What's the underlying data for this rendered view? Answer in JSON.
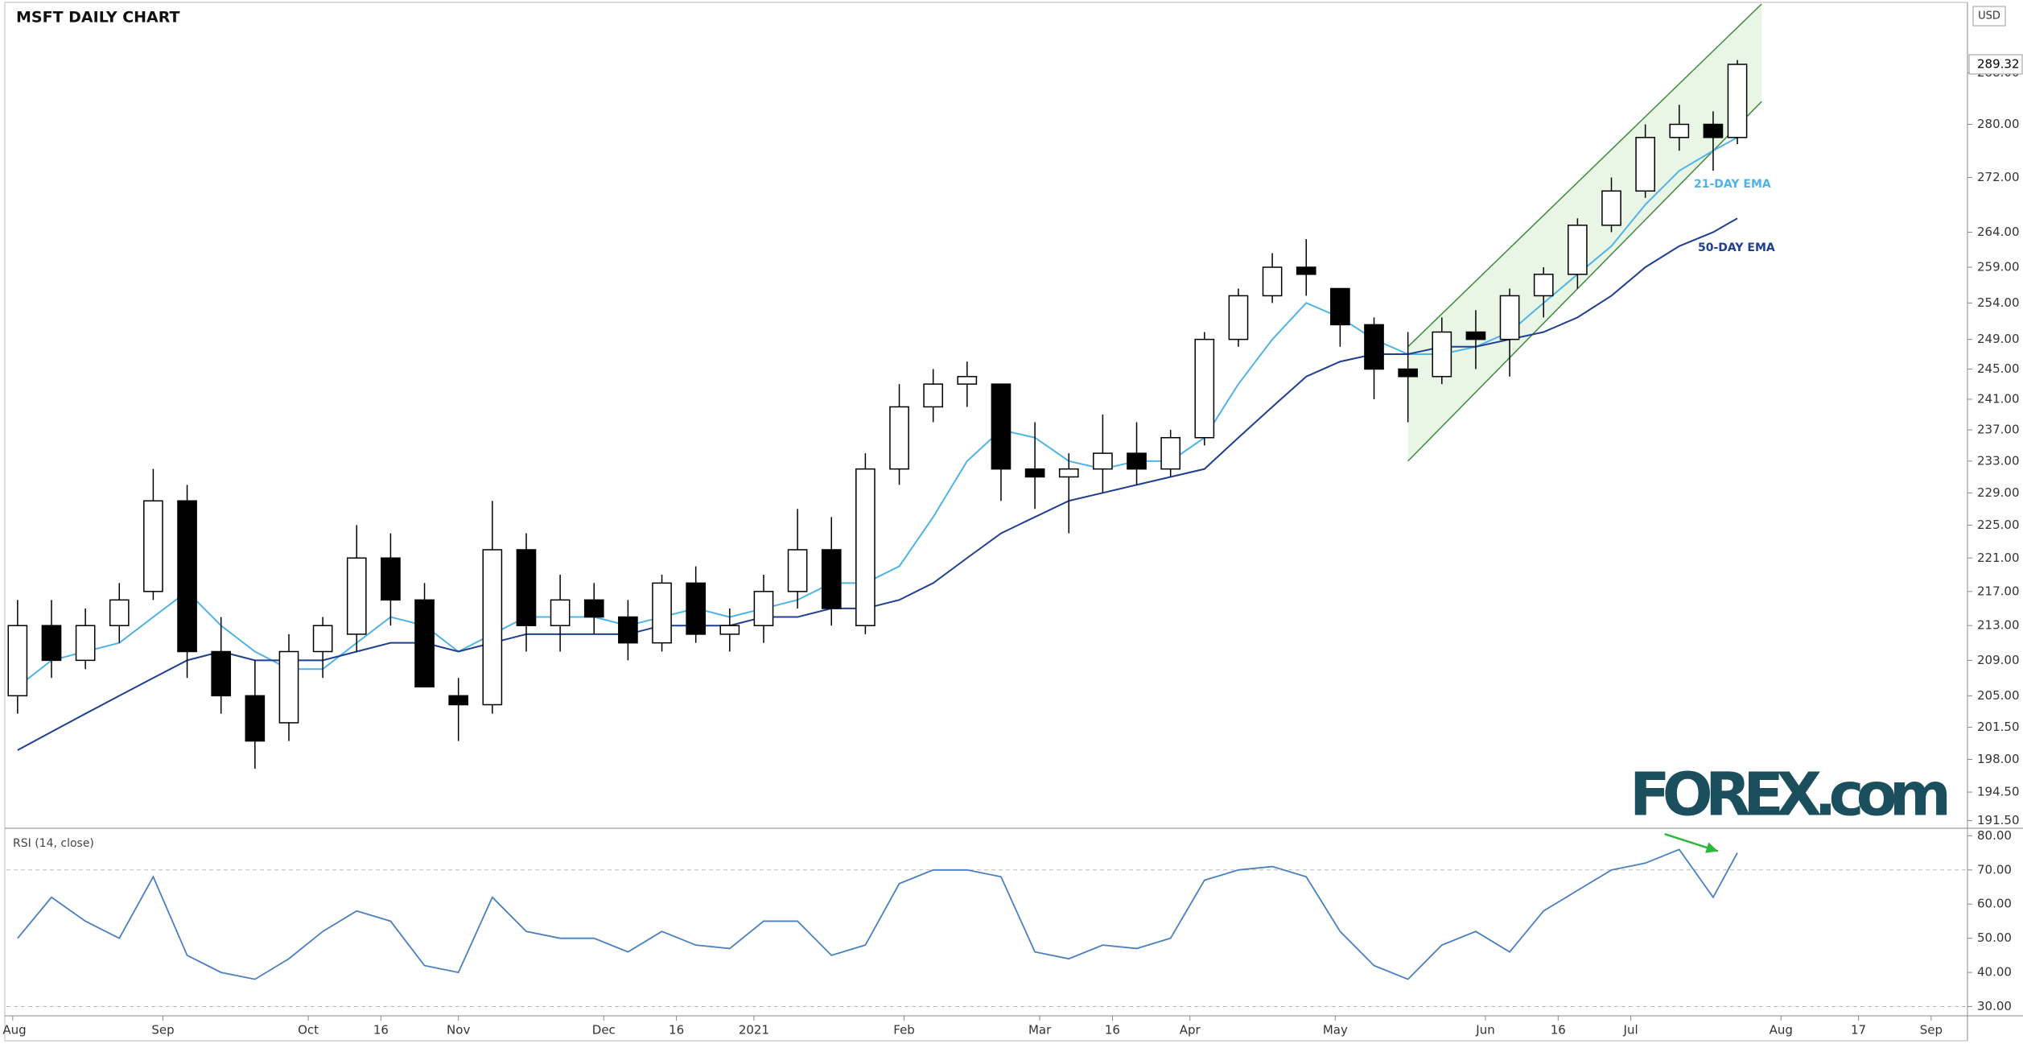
{
  "logo": "FOREX.com",
  "chart_data": [
    {
      "type": "candlestick",
      "title": "MSFT DAILY CHART",
      "currency": "USD",
      "log_scale": true,
      "x": [
        1,
        8,
        15,
        22,
        29,
        36,
        43,
        50,
        57,
        64,
        71,
        78,
        85,
        92,
        99,
        106,
        113,
        120,
        127,
        134,
        141,
        148,
        155,
        162,
        169,
        176,
        183,
        190,
        197,
        204,
        211,
        218,
        225,
        232,
        239,
        246,
        253,
        260,
        267,
        274,
        281,
        288,
        295,
        302,
        309,
        316,
        323,
        330,
        337,
        344,
        351,
        356
      ],
      "open": [
        205,
        213,
        209,
        213,
        217,
        228,
        210,
        205,
        202,
        210,
        212,
        221,
        216,
        205,
        204,
        222,
        213,
        216,
        214,
        211,
        218,
        212,
        213,
        217,
        222,
        213,
        232,
        240,
        243,
        243,
        232,
        231,
        232,
        234,
        232,
        236,
        249,
        255,
        259,
        256,
        251,
        245,
        244,
        250,
        249,
        255,
        258,
        265,
        270,
        278,
        280,
        278
      ],
      "high": [
        216,
        216,
        215,
        218,
        232,
        230,
        214,
        209,
        212,
        214,
        225,
        224,
        218,
        207,
        228,
        224,
        219,
        218,
        216,
        219,
        220,
        215,
        219,
        227,
        226,
        234,
        243,
        245,
        246,
        243,
        238,
        234,
        239,
        238,
        237,
        250,
        256,
        261,
        263,
        256,
        252,
        250,
        252,
        253,
        256,
        259,
        266,
        272,
        280,
        283,
        282,
        290
      ],
      "low": [
        203,
        207,
        208,
        211,
        216,
        207,
        203,
        197,
        200,
        207,
        210,
        213,
        206,
        200,
        203,
        210,
        210,
        212,
        209,
        210,
        211,
        210,
        211,
        215,
        213,
        212,
        230,
        238,
        240,
        228,
        227,
        224,
        229,
        230,
        231,
        235,
        248,
        254,
        255,
        248,
        241,
        238,
        243,
        245,
        244,
        252,
        256,
        264,
        269,
        276,
        273,
        277
      ],
      "close": [
        213,
        209,
        213,
        216,
        228,
        210,
        205,
        200,
        210,
        213,
        221,
        216,
        206,
        204,
        222,
        213,
        216,
        214,
        211,
        218,
        212,
        213,
        217,
        222,
        215,
        232,
        240,
        243,
        244,
        232,
        231,
        232,
        234,
        232,
        236,
        249,
        255,
        259,
        258,
        251,
        245,
        244,
        250,
        249,
        255,
        258,
        265,
        270,
        278,
        280,
        278,
        289.32
      ],
      "up_color": "#ffffff",
      "down_color": "#000000",
      "series": [
        {
          "name": "21-DAY EMA",
          "color": "#4fb3e8",
          "values": [
            206,
            209,
            210,
            211,
            214,
            217,
            213,
            210,
            208,
            208,
            211,
            214,
            213,
            210,
            212,
            214,
            214,
            214,
            213,
            214,
            215,
            214,
            215,
            216,
            218,
            218,
            220,
            226,
            233,
            237,
            236,
            233,
            232,
            233,
            233,
            236,
            243,
            249,
            254,
            252,
            249,
            247,
            247,
            248,
            250,
            254,
            258,
            262,
            268,
            273,
            276,
            278
          ]
        },
        {
          "name": "50-DAY EMA",
          "color": "#1f3f8f",
          "values": [
            199,
            201,
            203,
            205,
            207,
            209,
            210,
            209,
            209,
            209,
            210,
            211,
            211,
            210,
            211,
            212,
            212,
            212,
            212,
            213,
            213,
            213,
            214,
            214,
            215,
            215,
            216,
            218,
            221,
            224,
            226,
            228,
            229,
            230,
            231,
            232,
            236,
            240,
            244,
            246,
            247,
            247,
            248,
            248,
            249,
            250,
            252,
            255,
            259,
            262,
            264,
            266
          ]
        }
      ],
      "channel": {
        "x": [
          288,
          361
        ],
        "upper": [
          248,
          299
        ],
        "lower": [
          233,
          283.5
        ]
      },
      "last_price": 289.32,
      "xlim": [
        -1.3,
        403.5
      ],
      "xticks": [
        {
          "value": 0,
          "label": "Aug"
        },
        {
          "value": 31,
          "label": "Sep"
        },
        {
          "value": 61,
          "label": "Oct"
        },
        {
          "value": 76,
          "label": "16"
        },
        {
          "value": 92,
          "label": "Nov"
        },
        {
          "value": 122,
          "label": "Dec"
        },
        {
          "value": 137,
          "label": "16"
        },
        {
          "value": 153,
          "label": "2021"
        },
        {
          "value": 184,
          "label": "Feb"
        },
        {
          "value": 212,
          "label": "Mar"
        },
        {
          "value": 227,
          "label": "16"
        },
        {
          "value": 243,
          "label": "Apr"
        },
        {
          "value": 273,
          "label": "May"
        },
        {
          "value": 304,
          "label": "Jun"
        },
        {
          "value": 319,
          "label": "16"
        },
        {
          "value": 334,
          "label": "Jul"
        },
        {
          "value": 365,
          "label": "Aug"
        },
        {
          "value": 381,
          "label": "17"
        },
        {
          "value": 396,
          "label": "Sep"
        }
      ],
      "ylim": [
        190.7,
        299
      ],
      "yticks": [
        {
          "value": 191.5,
          "label": "191.50"
        },
        {
          "value": 194.5,
          "label": "194.50"
        },
        {
          "value": 198,
          "label": "198.00"
        },
        {
          "value": 201.5,
          "label": "201.50"
        },
        {
          "value": 205,
          "label": "205.00"
        },
        {
          "value": 209,
          "label": "209.00"
        },
        {
          "value": 213,
          "label": "213.00"
        },
        {
          "value": 217,
          "label": "217.00"
        },
        {
          "value": 221,
          "label": "221.00"
        },
        {
          "value": 225,
          "label": "225.00"
        },
        {
          "value": 229,
          "label": "229.00"
        },
        {
          "value": 233,
          "label": "233.00"
        },
        {
          "value": 237,
          "label": "237.00"
        },
        {
          "value": 241,
          "label": "241.00"
        },
        {
          "value": 245,
          "label": "245.00"
        },
        {
          "value": 249,
          "label": "249.00"
        },
        {
          "value": 254,
          "label": "254.00"
        },
        {
          "value": 259,
          "label": "259.00"
        },
        {
          "value": 264,
          "label": "264.00"
        },
        {
          "value": 272,
          "label": "272.00"
        },
        {
          "value": 280,
          "label": "280.00"
        },
        {
          "value": 288,
          "label": "288.00"
        }
      ]
    },
    {
      "type": "line",
      "title": "RSI (14, close)",
      "color": "#4a7fc1",
      "values": [
        50,
        62,
        55,
        50,
        68,
        45,
        40,
        38,
        44,
        52,
        58,
        55,
        42,
        40,
        62,
        52,
        50,
        50,
        46,
        52,
        48,
        47,
        55,
        55,
        45,
        48,
        66,
        70,
        70,
        68,
        46,
        44,
        48,
        47,
        50,
        67,
        70,
        71,
        68,
        52,
        42,
        38,
        48,
        52,
        46,
        58,
        64,
        70,
        72,
        76,
        62,
        75
      ],
      "levels": [
        30,
        70
      ],
      "arrow": {
        "x": [
          341,
          352
        ],
        "y": [
          80.5,
          75.5
        ],
        "color": "#2db83d"
      },
      "ylim": [
        27.3,
        81.5
      ],
      "yticks": [
        {
          "value": 30,
          "label": "30.00"
        },
        {
          "value": 40,
          "label": "40.00"
        },
        {
          "value": 50,
          "label": "50.00"
        },
        {
          "value": 60,
          "label": "60.00"
        },
        {
          "value": 70,
          "label": "70.00"
        },
        {
          "value": 80,
          "label": "80.00"
        }
      ]
    }
  ]
}
